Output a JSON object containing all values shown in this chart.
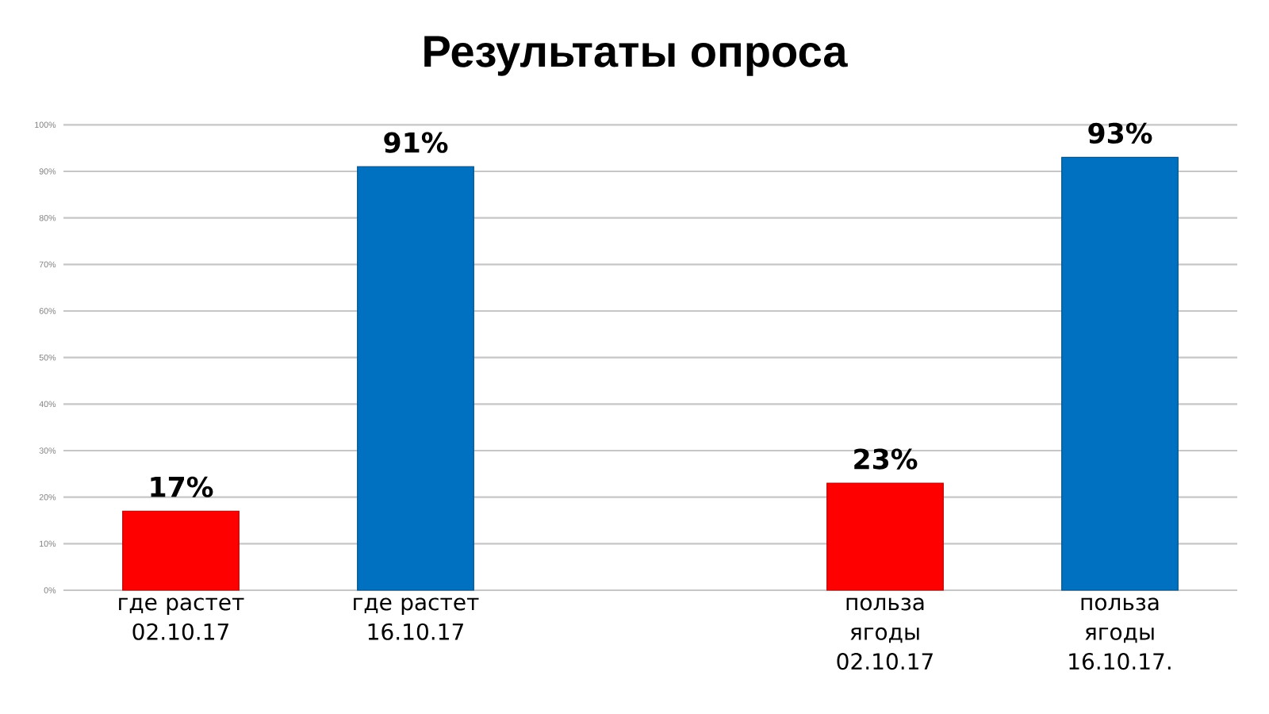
{
  "chart_data": {
    "type": "bar",
    "title": "Результаты опроса",
    "categories": [
      "где растет 02.10.17",
      "где растет 16.10.17",
      null,
      "польза ягоды 02.10.17",
      "польза ягоды 16.10.17."
    ],
    "values": [
      17,
      91,
      null,
      23,
      93
    ],
    "colors": [
      "#ff0000",
      "#0070c0",
      "#0070c0",
      "#ff0000",
      "#0070c0"
    ],
    "value_labels": [
      "17%",
      "91%",
      null,
      "23%",
      "93%"
    ],
    "ylim": [
      0,
      100
    ],
    "yticks": [
      {
        "value": 0,
        "label": "0%"
      },
      {
        "value": 10,
        "label": "10%"
      },
      {
        "value": 20,
        "label": "20%"
      },
      {
        "value": 30,
        "label": "30%"
      },
      {
        "value": 40,
        "label": "40%"
      },
      {
        "value": 50,
        "label": "50%"
      },
      {
        "value": 60,
        "label": "60%"
      },
      {
        "value": 70,
        "label": "70%"
      },
      {
        "value": 80,
        "label": "80%"
      },
      {
        "value": 90,
        "label": "90%"
      },
      {
        "value": 100,
        "label": "100%"
      }
    ],
    "grid": "y"
  }
}
